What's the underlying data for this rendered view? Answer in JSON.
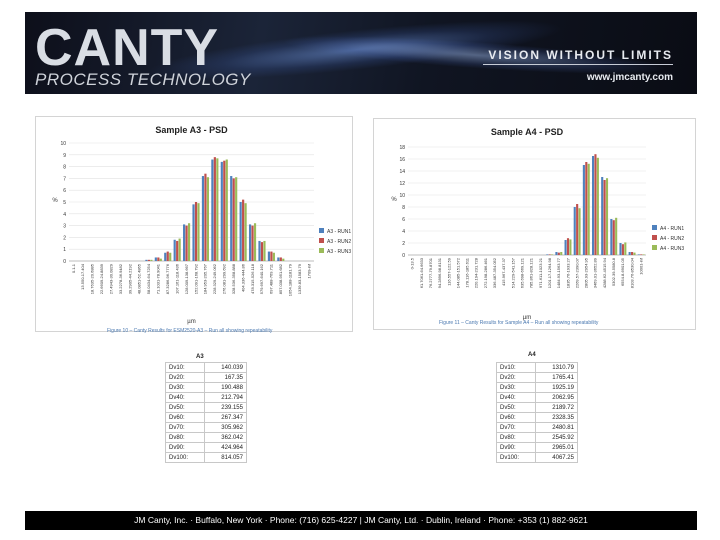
{
  "header": {
    "brand": "CANTY",
    "subtitle": "PROCESS TECHNOLOGY",
    "tagline": "VISION WITHOUT LIMITS",
    "website": "www.jmcanty.com"
  },
  "colors": {
    "run1": "#4f81bd",
    "run2": "#c0504d",
    "run3": "#9bbb59",
    "caption": "#4a78b0",
    "footer_bg": "#000000"
  },
  "chart_data": [
    {
      "type": "bar",
      "title": "Sample A3 - PSD",
      "ylabel": "%",
      "xlabel": "µm",
      "ylim": [
        0,
        10
      ],
      "yticks": [
        0,
        1,
        2,
        3,
        4,
        5,
        6,
        7,
        8,
        9,
        10
      ],
      "categories": [
        "0.1-1",
        "13.550-17.404",
        "18.7635-20.6885",
        "22.6609-24.8839",
        "27.4943-30.0829",
        "33.2278-36.9482",
        "39.2905-44.2192",
        "48.0851-52.4865",
        "58.0434-64.7254",
        "71.1031-78.9041",
        "87.3286-96.7776",
        "107.161-118.436",
        "128.009-138.667",
        "152.091-168.792",
        "184.953-205.767",
        "228.329-249.062",
        "276.081-299.692",
        "328.536-358.888",
        "404.336-444.86",
        "478.315-526.118",
        "579.697-640.162",
        "697.488-769.711",
        "857.038-951.682",
        "1054.188-1181.79",
        "1339.83-1583.79",
        "1709-inf"
      ],
      "series": [
        {
          "name": "A3 - RUN1",
          "values": [
            0,
            0,
            0,
            0,
            0,
            0,
            0,
            0,
            0.1,
            0.3,
            0.7,
            1.8,
            3.1,
            4.8,
            7.2,
            8.6,
            8.4,
            7.2,
            5.0,
            3.1,
            1.7,
            0.8,
            0.3,
            0,
            0,
            0
          ]
        },
        {
          "name": "A3 - RUN2",
          "values": [
            0,
            0,
            0,
            0,
            0,
            0,
            0,
            0,
            0.1,
            0.3,
            0.8,
            1.7,
            3.0,
            5.0,
            7.4,
            8.8,
            8.5,
            7.0,
            5.2,
            3.0,
            1.6,
            0.8,
            0.3,
            0,
            0,
            0
          ]
        },
        {
          "name": "A3 - RUN3",
          "values": [
            0,
            0,
            0,
            0,
            0,
            0,
            0,
            0,
            0.1,
            0.2,
            0.7,
            1.9,
            3.2,
            4.9,
            7.1,
            8.7,
            8.6,
            7.1,
            4.9,
            3.2,
            1.7,
            0.7,
            0.2,
            0,
            0,
            0
          ]
        }
      ],
      "caption": "Figure 10 – Canty Results for ESM2520-A3 – Run all showing repeatability"
    },
    {
      "type": "bar",
      "title": "Sample A4 - PSD",
      "ylabel": "%",
      "xlabel": "µm",
      "ylim": [
        0,
        18
      ],
      "yticks": [
        0,
        2,
        4,
        6,
        8,
        10,
        12,
        14,
        16,
        18
      ],
      "categories": [
        "0-13.5",
        "61.7061-64.6633",
        "76.2777-79.8701",
        "94.2896-98.8131",
        "116.557-122.59",
        "144.085-151.572",
        "178.116-185.611",
        "220.194-231.728",
        "272.198-286.461",
        "336.487-354.052",
        "415.967-437.37",
        "514.229-541.157",
        "635.698-669.121",
        "785.861-828.121",
        "971.611-1023.21",
        "1201.17-1264.98",
        "1484.93-1563.77",
        "1835.76-1933.27",
        "2269.57-2390.07",
        "2805.93-2954.95",
        "3469.01-3652.89",
        "4288.62-4515.94",
        "5302.39-5580.8",
        "6554.8-6901.05",
        "8103.76-8530.04",
        "10001-inf"
      ],
      "series": [
        {
          "name": "A4 - RUN1",
          "values": [
            0,
            0,
            0,
            0,
            0,
            0,
            0,
            0,
            0,
            0,
            0,
            0,
            0,
            0,
            0,
            0.1,
            0.5,
            2.5,
            8.0,
            15.0,
            16.5,
            13.0,
            6.0,
            2.0,
            0.5,
            0.1
          ]
        },
        {
          "name": "A4 - RUN2",
          "values": [
            0,
            0,
            0,
            0,
            0,
            0,
            0,
            0,
            0,
            0,
            0,
            0,
            0,
            0,
            0,
            0.1,
            0.4,
            2.8,
            8.5,
            15.5,
            16.8,
            12.5,
            5.8,
            1.8,
            0.5,
            0.1
          ]
        },
        {
          "name": "A4 - RUN3",
          "values": [
            0,
            0,
            0,
            0,
            0,
            0,
            0,
            0,
            0,
            0,
            0,
            0,
            0,
            0,
            0,
            0.1,
            0.5,
            2.6,
            7.8,
            15.2,
            16.2,
            12.8,
            6.2,
            2.1,
            0.4,
            0.1
          ]
        }
      ],
      "caption": "Figure 11 – Canty Results for Sample A4 – Run all showing repeatability"
    }
  ],
  "tables": {
    "a3": {
      "title": "A3",
      "rows": [
        {
          "label": "Dv10:",
          "value": "140.039"
        },
        {
          "label": "Dv20:",
          "value": "167.35"
        },
        {
          "label": "Dv30:",
          "value": "190.488"
        },
        {
          "label": "Dv40:",
          "value": "212.794"
        },
        {
          "label": "Dv50:",
          "value": "239.155"
        },
        {
          "label": "Dv60:",
          "value": "267.347"
        },
        {
          "label": "Dv70:",
          "value": "305.962"
        },
        {
          "label": "Dv80:",
          "value": "362.042"
        },
        {
          "label": "Dv90:",
          "value": "424.964"
        },
        {
          "label": "Dv100:",
          "value": "814.057"
        }
      ]
    },
    "a4": {
      "title": "A4",
      "rows": [
        {
          "label": "Dv10:",
          "value": "1310.79"
        },
        {
          "label": "Dv20:",
          "value": "1765.41"
        },
        {
          "label": "Dv30:",
          "value": "1925.19"
        },
        {
          "label": "Dv40:",
          "value": "2062.95"
        },
        {
          "label": "Dv50:",
          "value": "2189.72"
        },
        {
          "label": "Dv60:",
          "value": "2328.35"
        },
        {
          "label": "Dv70:",
          "value": "2480.81"
        },
        {
          "label": "Dv80:",
          "value": "2545.92"
        },
        {
          "label": "Dv90:",
          "value": "2965.01"
        },
        {
          "label": "Dv100:",
          "value": "4067.25"
        }
      ]
    }
  },
  "footer": {
    "text": "JM Canty, Inc. · Buffalo, New York · Phone: (716) 625-4227 | JM Canty, Ltd. · Dublin, Ireland · Phone: +353 (1) 882-9621"
  }
}
